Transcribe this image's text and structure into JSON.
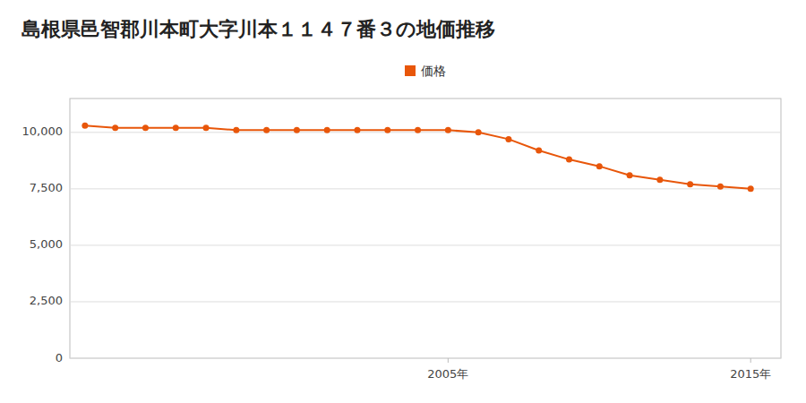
{
  "chart_data": {
    "type": "line",
    "title": "島根県邑智郡川本町大字川本１１４７番３の地価推移",
    "x": [
      1993,
      1994,
      1995,
      1996,
      1997,
      1998,
      1999,
      2000,
      2001,
      2002,
      2003,
      2004,
      2005,
      2006,
      2007,
      2008,
      2009,
      2010,
      2011,
      2012,
      2013,
      2014,
      2015
    ],
    "series": [
      {
        "name": "価格",
        "color": "#E8560A",
        "marker": "circle",
        "values": [
          10300,
          10200,
          10200,
          10200,
          10200,
          10100,
          10100,
          10100,
          10100,
          10100,
          10100,
          10100,
          10100,
          10000,
          9700,
          9200,
          8800,
          8500,
          8100,
          7900,
          7700,
          7600,
          7500
        ]
      }
    ],
    "xlim": [
      1992.5,
      2016.0
    ],
    "xticks": [
      {
        "value": 2005,
        "label": "2005年"
      },
      {
        "value": 2015,
        "label": "2015年"
      }
    ],
    "ylim": [
      0,
      11500
    ],
    "yticks": [
      0,
      {
        "value": 2500,
        "label": "2,500"
      },
      {
        "value": 5000,
        "label": "5,000"
      },
      {
        "value": 7500,
        "label": "7,500"
      },
      {
        "value": 10000,
        "label": "10,000"
      }
    ],
    "grid": true,
    "legend": "top"
  }
}
